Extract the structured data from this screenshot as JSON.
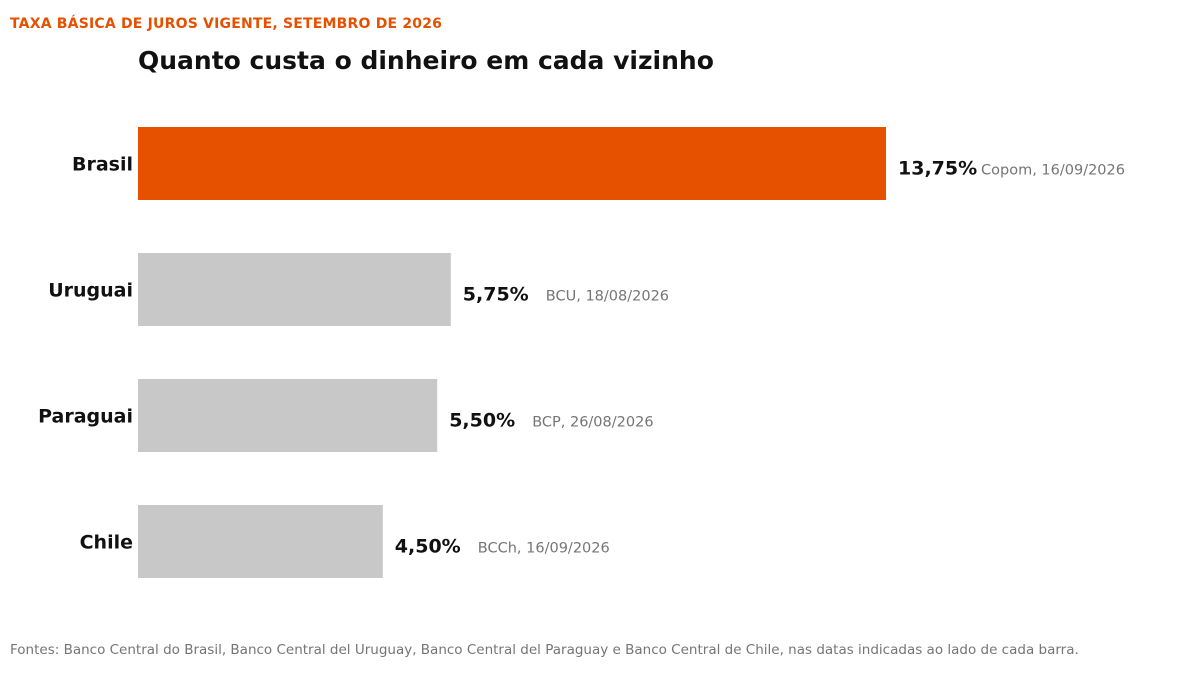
{
  "kicker": "TAXA BÁSICA DE JUROS VIGENTE, SETEMBRO DE 2026",
  "title": "Quanto custa o dinheiro em cada vizinho",
  "footer": "Fontes: Banco Central do Brasil, Banco Central del Uruguay, Banco Central del Paraguay e Banco Central de Chile, nas datas indicadas ao lado de cada barra.",
  "colors": {
    "highlight": "#E65100",
    "muted": "#C8C8C8",
    "text": "#111111",
    "note": "#757575"
  },
  "chart_data": {
    "type": "bar",
    "orientation": "horizontal",
    "categories": [
      "Brasil",
      "Uruguai",
      "Paraguai",
      "Chile"
    ],
    "values": [
      13.75,
      5.75,
      5.5,
      4.5
    ],
    "value_labels": [
      "13,75%",
      "5,75%",
      "5,50%",
      "4,50%"
    ],
    "notes": [
      "Copom, 16/09/2026",
      "BCU, 18/08/2026",
      "BCP, 26/08/2026",
      "BCCh, 16/09/2026"
    ],
    "highlight": "Brasil",
    "title": "Quanto custa o dinheiro em cada vizinho",
    "xlabel": "",
    "ylabel": "",
    "xlim": [
      0,
      13.75
    ],
    "grid": false,
    "legend": "none"
  }
}
